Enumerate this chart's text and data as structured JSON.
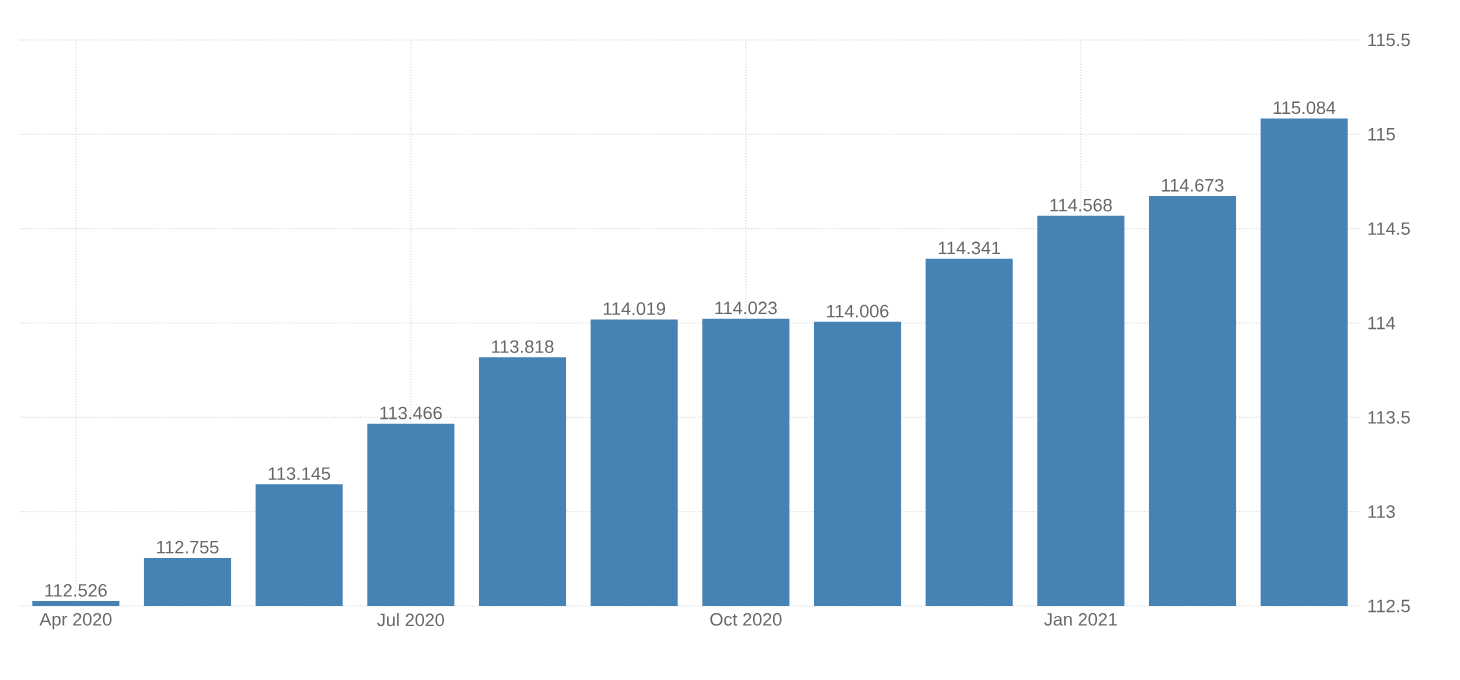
{
  "chart_data": {
    "type": "bar",
    "categories": [
      "Apr 2020",
      null,
      null,
      "Jul 2020",
      null,
      null,
      "Oct 2020",
      null,
      null,
      "Jan 2021",
      null,
      null
    ],
    "values": [
      112.526,
      112.755,
      113.145,
      113.466,
      113.818,
      114.019,
      114.023,
      114.006,
      114.341,
      114.568,
      114.673,
      115.084
    ],
    "color": "#4682b4",
    "ylim": [
      112.5,
      115.5
    ],
    "yticks": [
      112.5,
      113,
      113.5,
      114,
      114.5,
      115,
      115.5
    ],
    "grid": true,
    "data_labels": true
  }
}
